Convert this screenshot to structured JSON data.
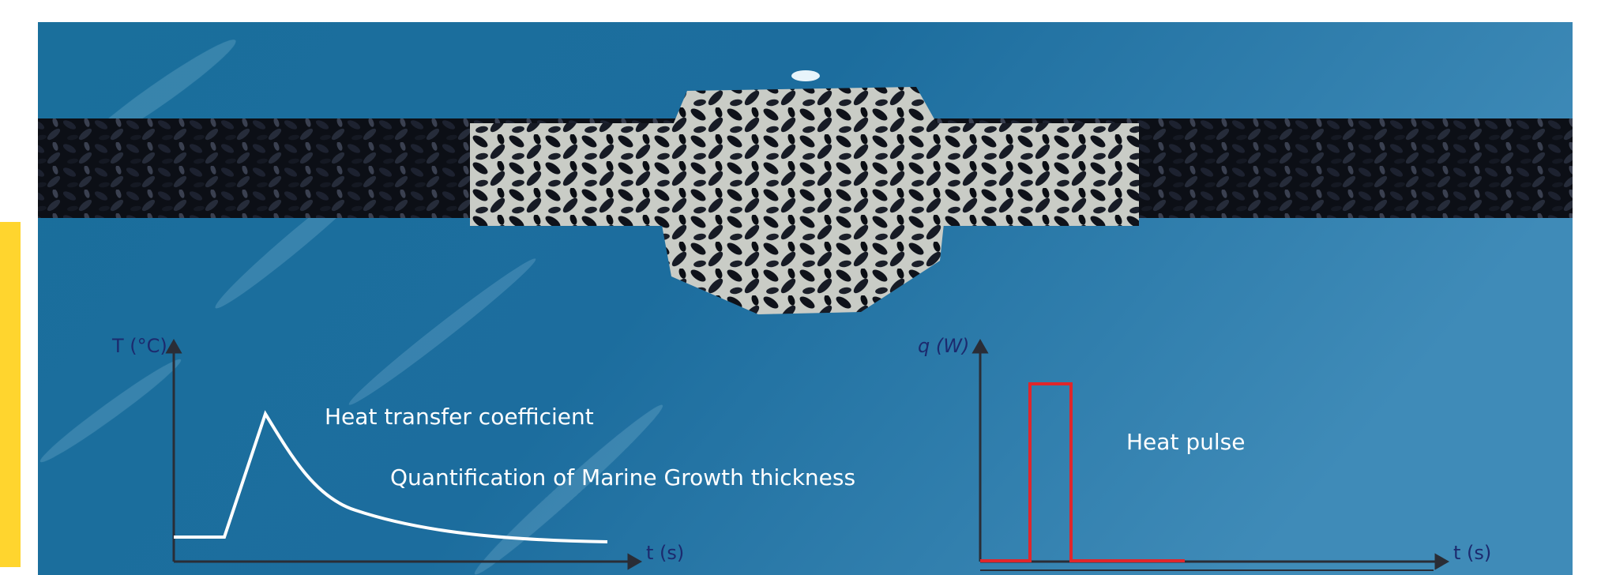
{
  "left_graph": {
    "y_axis_label": "T (°C)",
    "x_axis_label": "t (s)",
    "annotations": [
      "Heat transfer coefficient",
      "Quantification of Marine Growth thickness"
    ]
  },
  "right_graph": {
    "y_axis_label": "q (W)",
    "x_axis_label": "t (s)",
    "annotation": "Heat pulse"
  }
}
